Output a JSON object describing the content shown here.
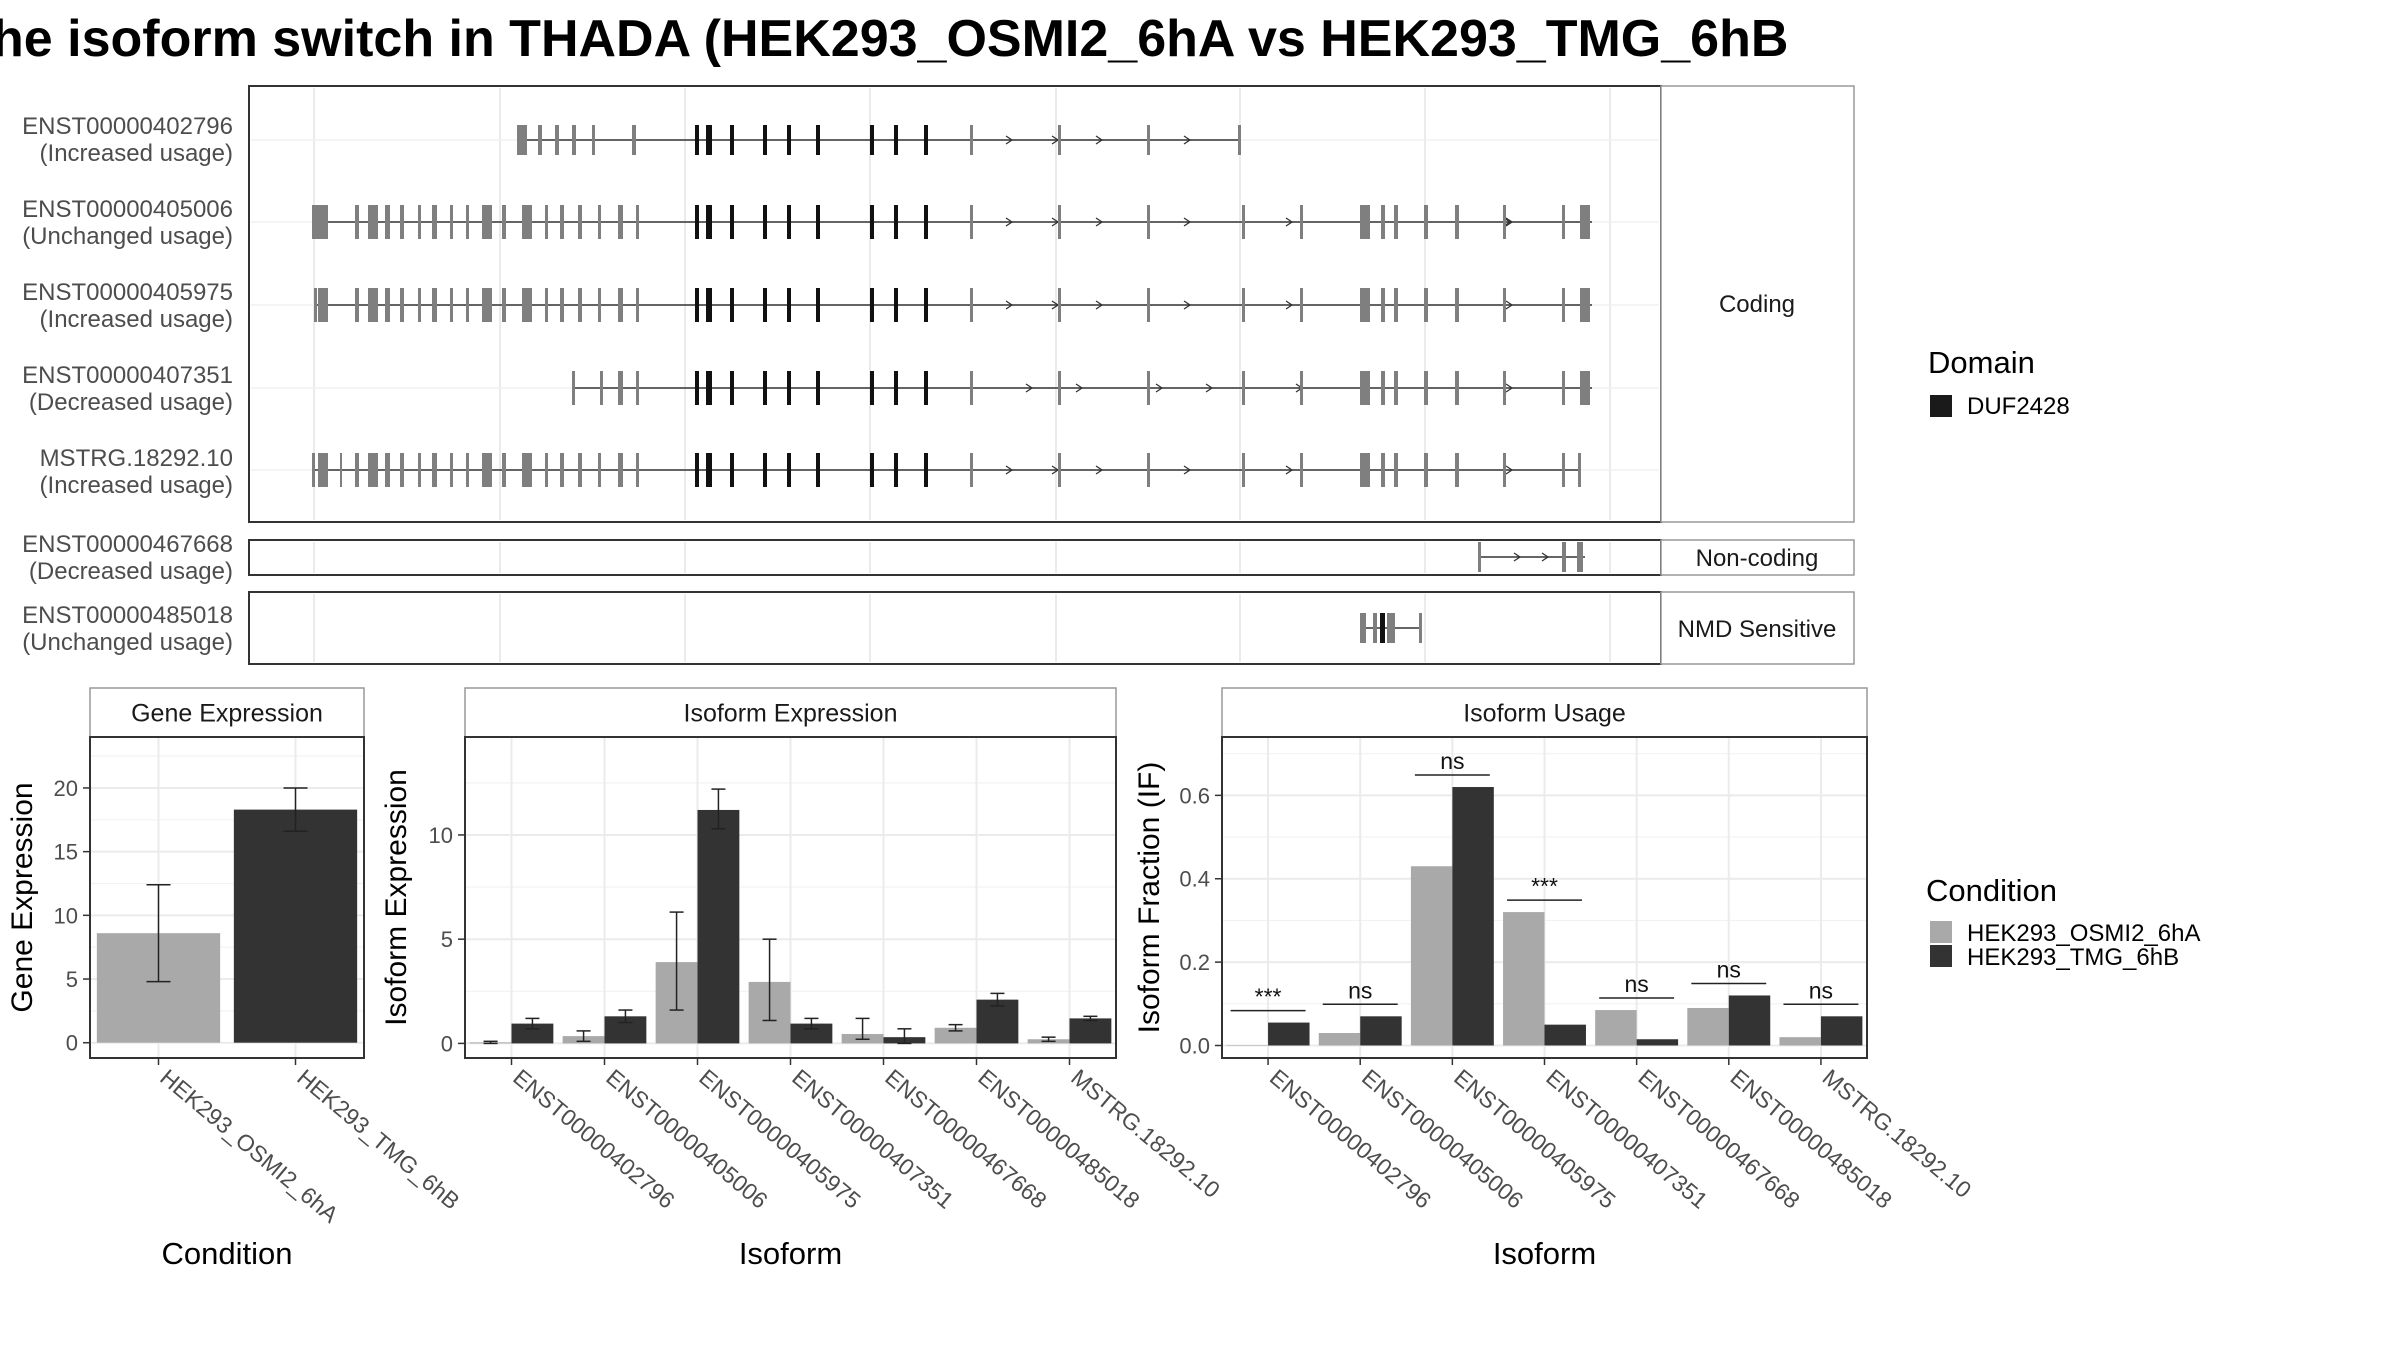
{
  "title": "he isoform switch in THADA (HEK293_OSMI2_6hA vs HEK293_TMG_6hB",
  "structure": {
    "categories": [
      "Coding",
      "Non-coding",
      "NMD Sensitive"
    ],
    "isoforms": [
      {
        "id": "ENST00000402796",
        "usage": "(Increased usage)",
        "category": "Coding"
      },
      {
        "id": "ENST00000405006",
        "usage": "(Unchanged usage)",
        "category": "Coding"
      },
      {
        "id": "ENST00000405975",
        "usage": "(Increased usage)",
        "category": "Coding"
      },
      {
        "id": "ENST00000407351",
        "usage": "(Decreased usage)",
        "category": "Coding"
      },
      {
        "id": "MSTRG.18292.10",
        "usage": "(Increased usage)",
        "category": "Coding"
      },
      {
        "id": "ENST00000467668",
        "usage": "(Decreased usage)",
        "category": "Non-coding"
      },
      {
        "id": "ENST00000485018",
        "usage": "(Unchanged usage)",
        "category": "NMD Sensitive"
      }
    ]
  },
  "legend_domain": {
    "title": "Domain",
    "items": [
      {
        "label": "DUF2428",
        "color": "#1a1a1a"
      }
    ]
  },
  "legend_condition": {
    "title": "Condition",
    "items": [
      {
        "label": "HEK293_OSMI2_6hA",
        "color": "#a9a9a9"
      },
      {
        "label": "HEK293_TMG_6hB",
        "color": "#333333"
      }
    ]
  },
  "chart_data": [
    {
      "type": "bar",
      "title": "Gene Expression",
      "xlabel": "Condition",
      "ylabel": "Gene Expression",
      "categories": [
        "HEK293_OSMI2_6hA",
        "HEK293_TMG_6hB"
      ],
      "values": [
        8.6,
        18.3
      ],
      "error": [
        [
          4.8,
          12.4
        ],
        [
          16.6,
          20.0
        ]
      ],
      "colors": [
        "#a9a9a9",
        "#333333"
      ],
      "ylim": [
        -1.2,
        24
      ],
      "yticks": [
        0,
        5,
        10,
        15,
        20
      ],
      "grid": true
    },
    {
      "type": "bar",
      "title": "Isoform Expression",
      "xlabel": "Isoform",
      "ylabel": "Isoform Expression",
      "categories": [
        "ENST00000402796",
        "ENST00000405006",
        "ENST00000405975",
        "ENST00000407351",
        "ENST00000467668",
        "ENST00000485018",
        "MSTRG.18292.10"
      ],
      "series": [
        {
          "name": "HEK293_OSMI2_6hA",
          "values": [
            0.05,
            0.35,
            3.9,
            2.95,
            0.45,
            0.75,
            0.2
          ],
          "error": [
            [
              0.0,
              0.1
            ],
            [
              0.1,
              0.6
            ],
            [
              1.6,
              6.3
            ],
            [
              1.1,
              5.0
            ],
            [
              0.2,
              1.2
            ],
            [
              0.6,
              0.9
            ],
            [
              0.1,
              0.3
            ]
          ]
        },
        {
          "name": "HEK293_TMG_6hB",
          "values": [
            0.95,
            1.3,
            11.2,
            0.95,
            0.3,
            2.1,
            1.2
          ],
          "error": [
            [
              0.7,
              1.2
            ],
            [
              1.0,
              1.6
            ],
            [
              10.3,
              12.2
            ],
            [
              0.7,
              1.2
            ],
            [
              0.0,
              0.7
            ],
            [
              1.8,
              2.4
            ],
            [
              1.1,
              1.3
            ]
          ]
        }
      ],
      "ylim": [
        -0.7,
        14.7
      ],
      "yticks": [
        0,
        5,
        10
      ],
      "grid": true
    },
    {
      "type": "bar",
      "title": "Isoform Usage",
      "xlabel": "Isoform",
      "ylabel": "Isoform Fraction (IF)",
      "categories": [
        "ENST00000402796",
        "ENST00000405006",
        "ENST00000405975",
        "ENST00000407351",
        "ENST00000467668",
        "ENST00000485018",
        "MSTRG.18292.10"
      ],
      "series": [
        {
          "name": "HEK293_OSMI2_6hA",
          "values": [
            0.0,
            0.03,
            0.43,
            0.32,
            0.085,
            0.09,
            0.02
          ]
        },
        {
          "name": "HEK293_TMG_6hB",
          "values": [
            0.055,
            0.07,
            0.62,
            0.05,
            0.015,
            0.12,
            0.07
          ]
        }
      ],
      "significance": [
        "***",
        "ns",
        "ns",
        "***",
        "ns",
        "ns",
        "ns"
      ],
      "ylim": [
        -0.03,
        0.74
      ],
      "yticks": [
        0.0,
        0.2,
        0.4,
        0.6
      ],
      "grid": true
    }
  ]
}
